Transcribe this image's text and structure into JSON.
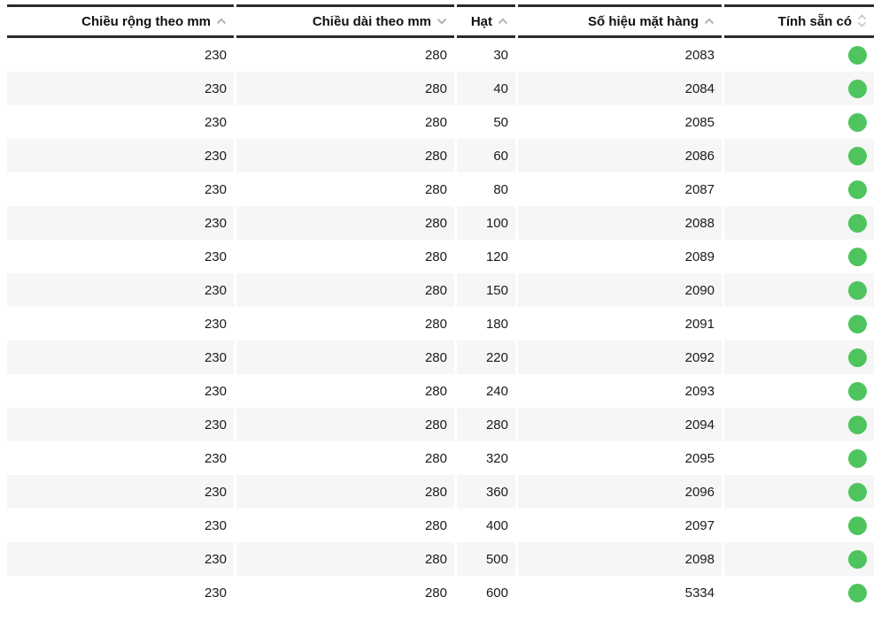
{
  "table": {
    "columns": [
      {
        "label": "Chiều rộng theo mm",
        "sort_icon": "up"
      },
      {
        "label": "Chiều dài theo mm",
        "sort_icon": "down"
      },
      {
        "label": "Hạt",
        "sort_icon": "up"
      },
      {
        "label": "Số hiệu mặt hàng",
        "sort_icon": "up"
      },
      {
        "label": "Tính sẵn có",
        "sort_icon": "both"
      }
    ],
    "rows": [
      {
        "width_mm": "230",
        "length_mm": "280",
        "grit": "30",
        "item_no": "2083",
        "available": true
      },
      {
        "width_mm": "230",
        "length_mm": "280",
        "grit": "40",
        "item_no": "2084",
        "available": true
      },
      {
        "width_mm": "230",
        "length_mm": "280",
        "grit": "50",
        "item_no": "2085",
        "available": true
      },
      {
        "width_mm": "230",
        "length_mm": "280",
        "grit": "60",
        "item_no": "2086",
        "available": true
      },
      {
        "width_mm": "230",
        "length_mm": "280",
        "grit": "80",
        "item_no": "2087",
        "available": true
      },
      {
        "width_mm": "230",
        "length_mm": "280",
        "grit": "100",
        "item_no": "2088",
        "available": true
      },
      {
        "width_mm": "230",
        "length_mm": "280",
        "grit": "120",
        "item_no": "2089",
        "available": true
      },
      {
        "width_mm": "230",
        "length_mm": "280",
        "grit": "150",
        "item_no": "2090",
        "available": true
      },
      {
        "width_mm": "230",
        "length_mm": "280",
        "grit": "180",
        "item_no": "2091",
        "available": true
      },
      {
        "width_mm": "230",
        "length_mm": "280",
        "grit": "220",
        "item_no": "2092",
        "available": true
      },
      {
        "width_mm": "230",
        "length_mm": "280",
        "grit": "240",
        "item_no": "2093",
        "available": true
      },
      {
        "width_mm": "230",
        "length_mm": "280",
        "grit": "280",
        "item_no": "2094",
        "available": true
      },
      {
        "width_mm": "230",
        "length_mm": "280",
        "grit": "320",
        "item_no": "2095",
        "available": true
      },
      {
        "width_mm": "230",
        "length_mm": "280",
        "grit": "360",
        "item_no": "2096",
        "available": true
      },
      {
        "width_mm": "230",
        "length_mm": "280",
        "grit": "400",
        "item_no": "2097",
        "available": true
      },
      {
        "width_mm": "230",
        "length_mm": "280",
        "grit": "500",
        "item_no": "2098",
        "available": true
      },
      {
        "width_mm": "230",
        "length_mm": "280",
        "grit": "600",
        "item_no": "5334",
        "available": true
      }
    ]
  },
  "colors": {
    "available_green": "#4ec45e",
    "row_stripe": "#f6f6f6",
    "header_border": "#2b2b2b",
    "sort_chevron_gray": "#b3b3b3",
    "sort_both_gray": "#c9c9c9"
  }
}
